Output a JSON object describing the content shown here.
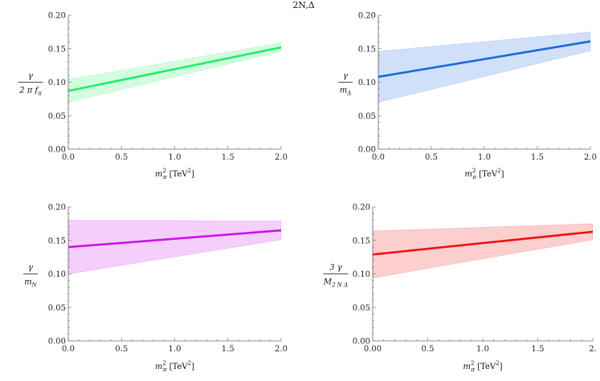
{
  "figure": {
    "title": "2N,Δ"
  },
  "chart_data": [
    {
      "type": "line",
      "id": "p1",
      "xlim": [
        0,
        2
      ],
      "ylim": [
        0,
        0.2
      ],
      "xticks": [
        "0.0",
        "0.5",
        "1.0",
        "1.5",
        "2.0"
      ],
      "yticks": [
        "0.00",
        "0.05",
        "0.10",
        "0.15",
        "0.20"
      ],
      "x": [
        0,
        2
      ],
      "center": [
        0.087,
        0.152
      ],
      "band_lower": [
        0.07,
        0.146
      ],
      "band_upper": [
        0.104,
        0.159
      ],
      "color": "#22ee66",
      "ylabel": {
        "num": "γ",
        "den": "2 π f",
        "den_sub": "π"
      },
      "xlabel": {
        "var": "m",
        "sub": "π",
        "sup": "2",
        "unit_pre": " [TeV",
        "unit_sup": "2",
        "unit_post": "]"
      }
    },
    {
      "type": "line",
      "id": "p2",
      "xlim": [
        0,
        2
      ],
      "ylim": [
        0,
        0.2
      ],
      "xticks": [
        "0.0",
        "0.5",
        "1.0",
        "1.5",
        "2.0"
      ],
      "yticks": [
        "0.00",
        "0.05",
        "0.10",
        "0.15",
        "0.20"
      ],
      "x": [
        0,
        2
      ],
      "center": [
        0.108,
        0.161
      ],
      "band_lower": [
        0.07,
        0.147
      ],
      "band_upper": [
        0.146,
        0.175
      ],
      "color": "#1a66e0",
      "ylabel": {
        "num": "γ",
        "den": "m",
        "den_sub": "Δ"
      },
      "xlabel": {
        "var": "m",
        "sub": "π",
        "sup": "2",
        "unit_pre": " [TeV",
        "unit_sup": "2",
        "unit_post": "]"
      }
    },
    {
      "type": "line",
      "id": "p3",
      "xlim": [
        0,
        2
      ],
      "ylim": [
        0,
        0.2
      ],
      "xticks": [
        "0.0",
        "0.5",
        "1.0",
        "1.5",
        "2.0"
      ],
      "yticks": [
        "0.00",
        "0.05",
        "0.10",
        "0.15",
        "0.20"
      ],
      "x": [
        0,
        2
      ],
      "center": [
        0.14,
        0.165
      ],
      "band_lower": [
        0.1,
        0.151
      ],
      "band_upper": [
        0.18,
        0.179
      ],
      "color": "#cc11ee",
      "ylabel": {
        "num": "γ",
        "den": "m",
        "den_sub": "N"
      },
      "xlabel": {
        "var": "m",
        "sub": "π",
        "sup": "2",
        "unit_pre": " [TeV",
        "unit_sup": "2",
        "unit_post": "]"
      }
    },
    {
      "type": "line",
      "id": "p4",
      "xlim": [
        0,
        2
      ],
      "ylim": [
        0,
        0.2
      ],
      "xticks": [
        "0.00",
        "0.5",
        "1.0",
        "1.5",
        "2."
      ],
      "yticks": [
        "0.00",
        "0.05",
        "0.10",
        "0.15",
        "0.20"
      ],
      "x": [
        0,
        2
      ],
      "center": [
        0.129,
        0.163
      ],
      "band_lower": [
        0.094,
        0.151
      ],
      "band_upper": [
        0.164,
        0.175
      ],
      "color": "#ee1111",
      "ylabel": {
        "num": "3 γ",
        "den": "M",
        "den_sub": "2 N Δ"
      },
      "xlabel": {
        "var": "m",
        "sub": "π",
        "sup": "2",
        "unit_pre": " [TeV",
        "unit_sup": "2",
        "unit_post": "]"
      }
    }
  ]
}
